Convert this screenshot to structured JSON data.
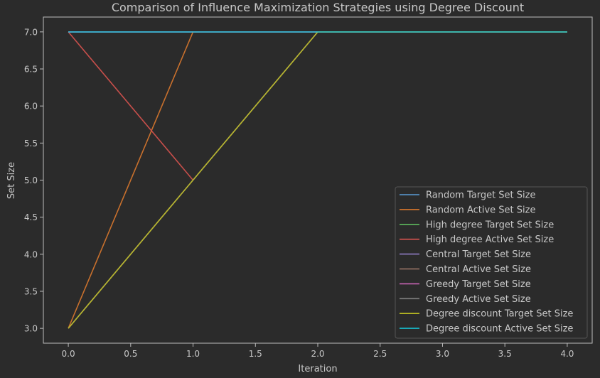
{
  "chart_data": {
    "type": "line",
    "title": "Comparison of Influence Maximization Strategies using Degree Discount",
    "xlabel": "Iteration",
    "ylabel": "Set Size",
    "xlim": [
      -0.2,
      4.2
    ],
    "ylim": [
      2.8,
      7.2
    ],
    "x_ticks": [
      0.0,
      0.5,
      1.0,
      1.5,
      2.0,
      2.5,
      3.0,
      3.5,
      4.0
    ],
    "x_tick_labels": [
      "0.0",
      "0.5",
      "1.0",
      "1.5",
      "2.0",
      "2.5",
      "3.0",
      "3.5",
      "4.0"
    ],
    "y_ticks": [
      3.0,
      3.5,
      4.0,
      4.5,
      5.0,
      5.5,
      6.0,
      6.5,
      7.0
    ],
    "y_tick_labels": [
      "3.0",
      "3.5",
      "4.0",
      "4.5",
      "5.0",
      "5.5",
      "6.0",
      "6.5",
      "7.0"
    ],
    "grid": false,
    "legend_position": "lower-right",
    "series": [
      {
        "name": "Random Target Set Size",
        "color": "#5b9bd5",
        "x": [
          0,
          1,
          2,
          3,
          4
        ],
        "y": [
          7,
          7,
          7,
          7,
          7
        ]
      },
      {
        "name": "Random Active Set Size",
        "color": "#d9782d",
        "x": [
          0,
          1,
          2,
          3,
          4
        ],
        "y": [
          3,
          7,
          7,
          7,
          7
        ]
      },
      {
        "name": "High degree Target Set Size",
        "color": "#5cb85c",
        "x": [
          0,
          1,
          2,
          3,
          4
        ],
        "y": [
          7,
          7,
          7,
          7,
          7
        ]
      },
      {
        "name": "High degree Active Set Size",
        "color": "#d9534f",
        "x": [
          0,
          1
        ],
        "y": [
          7,
          5
        ]
      },
      {
        "name": "Central Target Set Size",
        "color": "#8e7cc3",
        "x": [
          0,
          1,
          2,
          3,
          4
        ],
        "y": [
          7,
          7,
          7,
          7,
          7
        ]
      },
      {
        "name": "Central Active Set Size",
        "color": "#a0786a",
        "x": [
          0,
          1,
          2,
          3,
          4
        ],
        "y": [
          3,
          5,
          7,
          7,
          7
        ]
      },
      {
        "name": "Greedy Target Set Size",
        "color": "#c864b4",
        "x": [
          0,
          1,
          2,
          3,
          4
        ],
        "y": [
          7,
          7,
          7,
          7,
          7
        ]
      },
      {
        "name": "Greedy Active Set Size",
        "color": "#7f7f7f",
        "x": [
          0,
          1,
          2,
          3,
          4
        ],
        "y": [
          3,
          5,
          7,
          7,
          7
        ]
      },
      {
        "name": "Degree discount Target Set Size",
        "color": "#bcbd22",
        "x": [
          0,
          1,
          2,
          3,
          4
        ],
        "y": [
          3,
          5,
          7,
          7,
          7
        ]
      },
      {
        "name": "Degree discount Active Set Size",
        "color": "#17becf",
        "x": [
          0,
          1,
          2,
          3,
          4
        ],
        "y": [
          7,
          7,
          7,
          7,
          7
        ]
      }
    ]
  }
}
